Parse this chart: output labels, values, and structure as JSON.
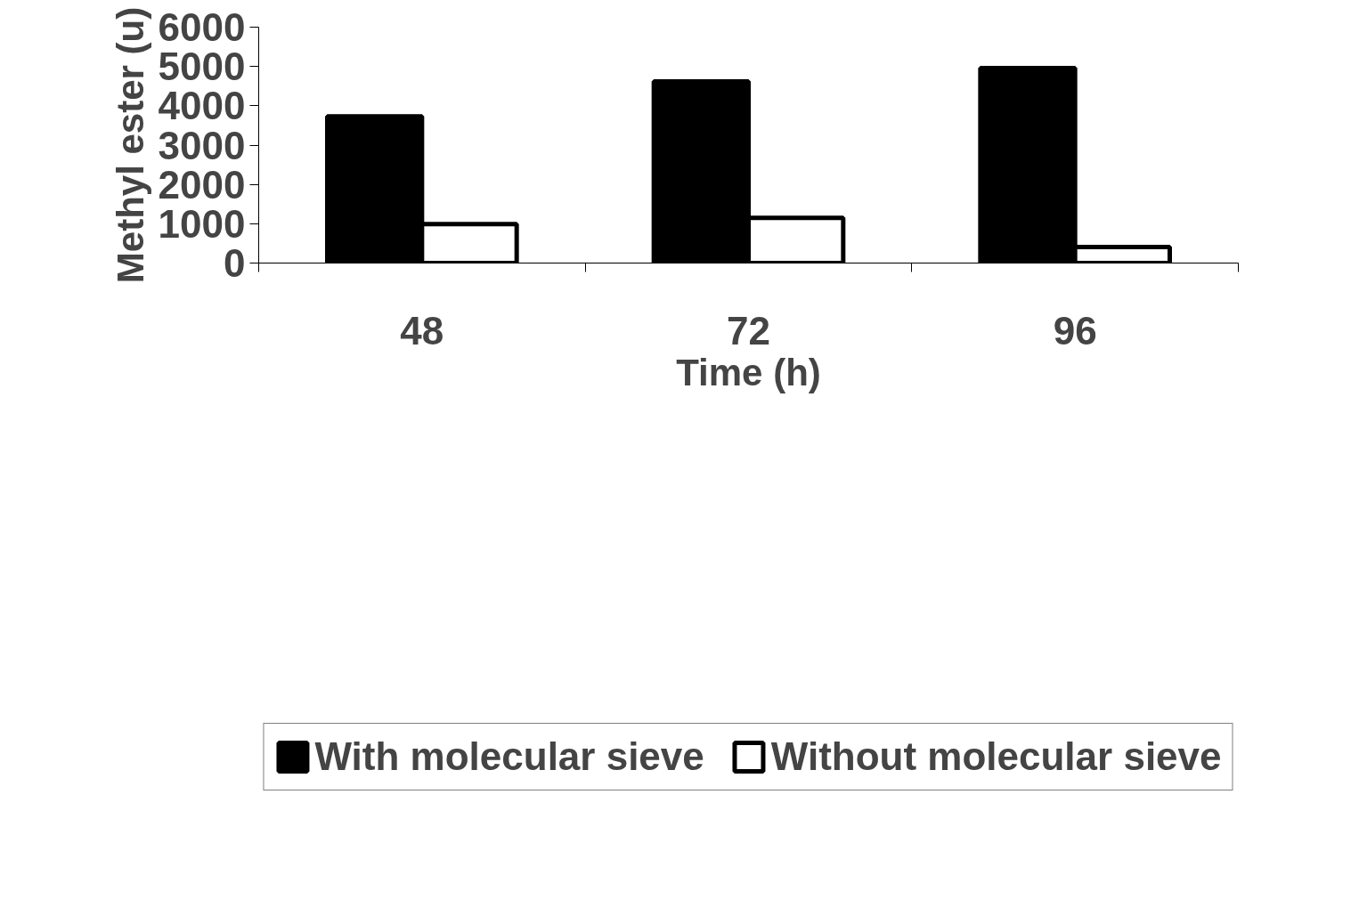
{
  "chart_data": {
    "type": "bar",
    "xlabel": "Time (h)",
    "ylabel": "Methyl ester (u)",
    "categories": [
      "48",
      "72",
      "96"
    ],
    "series": [
      {
        "name": "With molecular sieve",
        "color": "#000000",
        "values": [
          3730,
          4620,
          4960
        ]
      },
      {
        "name": "Without molecular sieve",
        "color": "#ffffff",
        "values": [
          990,
          1150,
          410
        ]
      }
    ],
    "ylim": [
      0,
      6000
    ],
    "yticks": [
      0,
      1000,
      2000,
      3000,
      4000,
      5000,
      6000
    ],
    "grid": false,
    "legend": "bottom"
  }
}
